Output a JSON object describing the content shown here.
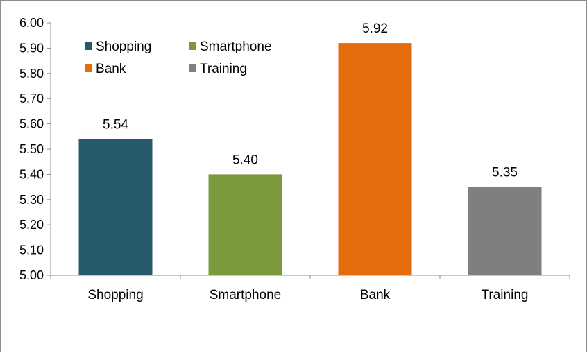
{
  "chart_data": {
    "type": "bar",
    "categories": [
      "Shopping",
      "Smartphone",
      "Bank",
      "Training"
    ],
    "values": [
      5.54,
      5.4,
      5.92,
      5.35
    ],
    "value_labels": [
      "5.54",
      "5.40",
      "5.92",
      "5.35"
    ],
    "colors": [
      "#245a6b",
      "#7a9a3c",
      "#e46c0a",
      "#7f7f7f"
    ],
    "ylim": [
      5.0,
      6.0
    ],
    "yticks": [
      5.0,
      5.1,
      5.2,
      5.3,
      5.4,
      5.5,
      5.6,
      5.7,
      5.8,
      5.9,
      6.0
    ],
    "ytick_labels": [
      "5.00",
      "5.10",
      "5.20",
      "5.30",
      "5.40",
      "5.50",
      "5.60",
      "5.70",
      "5.80",
      "5.90",
      "6.00"
    ],
    "grid": false,
    "legend": {
      "placement": "top-left",
      "entries": [
        {
          "label": "Shopping",
          "color": "#245a6b"
        },
        {
          "label": "Smartphone",
          "color": "#7a9a3c"
        },
        {
          "label": "Bank",
          "color": "#e46c0a"
        },
        {
          "label": "Training",
          "color": "#7f7f7f"
        }
      ]
    }
  }
}
